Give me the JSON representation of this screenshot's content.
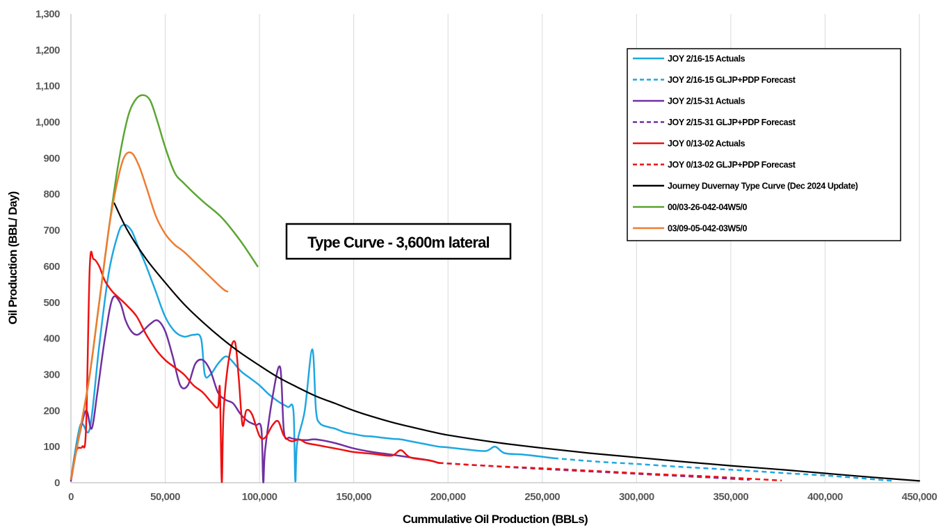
{
  "chart_data": {
    "type": "line",
    "xlabel": "Cummulative Oil Production (BBLs)",
    "ylabel": "Oil Production (BBL/ Day)",
    "xlim": [
      0,
      450000
    ],
    "ylim": [
      0,
      1300
    ],
    "x_ticks": [
      "0",
      "50,000",
      "100,000",
      "150,000",
      "200,000",
      "250,000",
      "300,000",
      "350,000",
      "400,000",
      "450,000"
    ],
    "y_ticks": [
      "0",
      "100",
      "200",
      "300",
      "400",
      "500",
      "600",
      "700",
      "800",
      "900",
      "1,000",
      "1,100",
      "1,200",
      "1,300"
    ],
    "grid": {
      "x": true,
      "y": false
    },
    "legend_position": "top-right",
    "annotation": "Type Curve - 3,600m lateral",
    "series": [
      {
        "name": "JOY 2/16-15 Actuals",
        "color": "#1ea7e1",
        "style": "solid",
        "x": [
          0,
          5000,
          10000,
          15000,
          20000,
          25000,
          28000,
          32000,
          36000,
          40000,
          45000,
          50000,
          55000,
          60000,
          65000,
          69000,
          71000,
          74000,
          78000,
          82000,
          85000,
          90000,
          95000,
          100000,
          105000,
          110000,
          115000,
          118000,
          119000,
          120000,
          124000,
          128000,
          130000,
          132000,
          136000,
          140000,
          145000,
          150000,
          155000,
          160000,
          165000,
          170000,
          175000,
          180000,
          185000,
          190000,
          195000,
          200000,
          210000,
          220000,
          225000,
          230000,
          240000,
          250000,
          256000
        ],
        "y": [
          10,
          160,
          150,
          380,
          580,
          690,
          715,
          700,
          650,
          600,
          530,
          460,
          420,
          405,
          410,
          400,
          300,
          300,
          330,
          350,
          340,
          310,
          290,
          270,
          245,
          225,
          210,
          200,
          5,
          110,
          200,
          370,
          200,
          165,
          155,
          150,
          140,
          135,
          130,
          128,
          125,
          122,
          120,
          115,
          110,
          105,
          100,
          98,
          92,
          88,
          100,
          82,
          78,
          72,
          68
        ]
      },
      {
        "name": "JOY 2/16-15 GLJP+PDP Forecast",
        "color": "#1ea7e1",
        "style": "dashed",
        "x": [
          256000,
          280000,
          300000,
          320000,
          340000,
          360000,
          380000,
          400000,
          420000,
          436000
        ],
        "y": [
          68,
          58,
          52,
          45,
          39,
          33,
          26,
          20,
          12,
          5
        ]
      },
      {
        "name": "JOY 2/15-31 Actuals",
        "color": "#7030a0",
        "style": "solid",
        "x": [
          0,
          4000,
          8000,
          11000,
          14000,
          18000,
          22000,
          26000,
          29000,
          32000,
          35000,
          38000,
          42000,
          46000,
          50000,
          54000,
          58000,
          62000,
          66000,
          70000,
          74000,
          78000,
          82000,
          86000,
          90000,
          94000,
          98000,
          101000,
          102000,
          103000,
          107000,
          111000,
          113000,
          116000,
          120000,
          125000,
          130000,
          140000,
          150000,
          160000,
          170000,
          180000,
          190000,
          195000
        ],
        "y": [
          5,
          120,
          200,
          150,
          250,
          400,
          510,
          500,
          450,
          420,
          410,
          420,
          440,
          450,
          420,
          350,
          270,
          270,
          330,
          340,
          310,
          250,
          230,
          220,
          190,
          170,
          160,
          150,
          2,
          90,
          240,
          320,
          140,
          125,
          120,
          118,
          120,
          110,
          95,
          85,
          78,
          70,
          62,
          55
        ]
      },
      {
        "name": "JOY 2/15-31 GLJP+PDP Forecast",
        "color": "#7030a0",
        "style": "dashed",
        "x": [
          195000,
          220000,
          250000,
          280000,
          310000,
          340000,
          360000
        ],
        "y": [
          55,
          47,
          38,
          30,
          22,
          14,
          8
        ]
      },
      {
        "name": "JOY 0/13-02 Actuals",
        "color": "#ee1111",
        "style": "solid",
        "x": [
          0,
          3000,
          6000,
          8000,
          10000,
          12000,
          15000,
          18000,
          22000,
          26000,
          30000,
          35000,
          40000,
          45000,
          50000,
          55000,
          60000,
          65000,
          70000,
          75000,
          78000,
          79000,
          80000,
          81000,
          84000,
          87000,
          89000,
          91000,
          93000,
          96000,
          100000,
          103000,
          107000,
          110000,
          113000,
          117000,
          121000,
          125000,
          130000,
          135000,
          140000,
          145000,
          150000,
          160000,
          170000,
          175000,
          180000,
          190000,
          195000
        ],
        "y": [
          10,
          90,
          100,
          150,
          600,
          620,
          600,
          560,
          530,
          510,
          490,
          460,
          410,
          370,
          340,
          320,
          300,
          270,
          250,
          220,
          210,
          260,
          2,
          200,
          350,
          390,
          290,
          160,
          200,
          190,
          130,
          125,
          160,
          170,
          130,
          115,
          120,
          110,
          105,
          100,
          95,
          90,
          85,
          80,
          75,
          90,
          70,
          62,
          55
        ]
      },
      {
        "name": "JOY 0/13-02 GLJP+PDP Forecast",
        "color": "#ee1111",
        "style": "dashed",
        "x": [
          195000,
          220000,
          250000,
          280000,
          310000,
          340000,
          360000,
          377000
        ],
        "y": [
          55,
          47,
          40,
          32,
          24,
          17,
          11,
          6
        ]
      },
      {
        "name": "Journey Duvernay Type Curve (Dec 2024 Update)",
        "color": "#000000",
        "style": "solid",
        "x": [
          23000,
          30000,
          40000,
          50000,
          60000,
          70000,
          80000,
          90000,
          100000,
          110000,
          120000,
          130000,
          140000,
          150000,
          160000,
          170000,
          180000,
          190000,
          200000,
          225000,
          250000,
          275000,
          300000,
          325000,
          350000,
          375000,
          400000,
          425000,
          450000
        ],
        "y": [
          775,
          700,
          620,
          555,
          495,
          445,
          400,
          360,
          325,
          292,
          265,
          240,
          220,
          200,
          183,
          168,
          155,
          143,
          132,
          112,
          96,
          82,
          70,
          58,
          47,
          37,
          26,
          15,
          5
        ]
      },
      {
        "name": "00/03-26-042-04W5/0",
        "color": "#5aa632",
        "style": "solid",
        "x": [
          0,
          5000,
          10000,
          15000,
          20000,
          25000,
          30000,
          34000,
          38000,
          42000,
          46000,
          50000,
          55000,
          60000,
          70000,
          80000,
          90000,
          99000
        ],
        "y": [
          10,
          150,
          300,
          500,
          700,
          880,
          1010,
          1060,
          1075,
          1060,
          1000,
          930,
          860,
          830,
          780,
          735,
          670,
          600
        ]
      },
      {
        "name": "03/09-05-042-03W5/0",
        "color": "#ed7d31",
        "style": "solid",
        "x": [
          0,
          5000,
          10000,
          15000,
          20000,
          24000,
          28000,
          32000,
          36000,
          40000,
          45000,
          50000,
          55000,
          60000,
          70000,
          80000,
          83000
        ],
        "y": [
          10,
          150,
          300,
          500,
          700,
          820,
          900,
          915,
          880,
          820,
          740,
          690,
          660,
          640,
          590,
          540,
          530
        ]
      }
    ]
  }
}
